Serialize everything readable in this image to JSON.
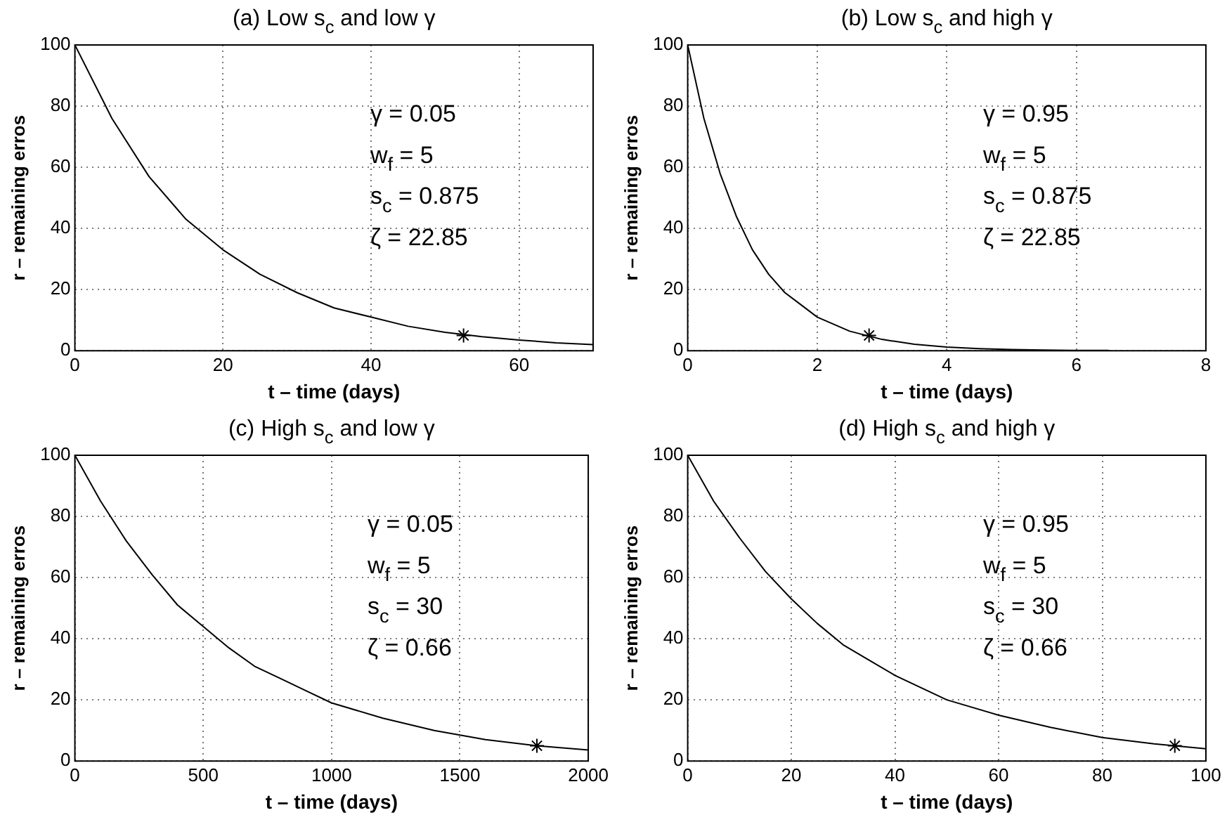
{
  "chart_data": [
    {
      "type": "line",
      "title": "(a) Low s$_{c}$ and low γ",
      "xlabel": "t – time (days)",
      "ylabel": "r – remaining erros",
      "xlim": [
        0,
        70
      ],
      "xticks": [
        0,
        20,
        40,
        60
      ],
      "ylim": [
        0,
        100
      ],
      "yticks": [
        0,
        20,
        40,
        60,
        80,
        100
      ],
      "grid": true,
      "line_style": "solid",
      "series": [
        {
          "type": "line",
          "color": "#000000",
          "marker": "none",
          "x": [
            0,
            5,
            10,
            15,
            20,
            25,
            30,
            35,
            40,
            45,
            50,
            55,
            60,
            65,
            70
          ],
          "values": [
            100,
            76,
            57,
            43,
            33,
            25,
            19,
            14,
            11,
            8,
            6,
            4.6,
            3.5,
            2.6,
            2
          ]
        },
        {
          "type": "scatter",
          "color": "#000000",
          "marker": "cross",
          "x": [
            52.5
          ],
          "values": [
            5
          ]
        }
      ],
      "annotations": [
        "γ = 0.05",
        "w$_{f}$ = 5",
        "s$_{c}$ = 0.875",
        "ζ = 22.85"
      ]
    },
    {
      "type": "line",
      "title": "(b) Low s$_{c}$ and high γ",
      "xlabel": "t – time (days)",
      "ylabel": "r – remaining erros",
      "xlim": [
        0,
        8
      ],
      "xticks": [
        0,
        2,
        4,
        6,
        8
      ],
      "ylim": [
        0,
        100
      ],
      "yticks": [
        0,
        20,
        40,
        60,
        80,
        100
      ],
      "grid": true,
      "line_style": "solid",
      "series": [
        {
          "type": "line",
          "color": "#000000",
          "marker": "none",
          "x": [
            0,
            0.25,
            0.5,
            0.75,
            1,
            1.25,
            1.5,
            1.75,
            2,
            2.5,
            3,
            3.5,
            4,
            4.5,
            5,
            5.5,
            6,
            6.5
          ],
          "values": [
            100,
            76,
            58,
            44,
            33,
            25,
            19,
            15,
            11,
            6.4,
            3.7,
            2.1,
            1.2,
            0.7,
            0.4,
            0.2,
            0.1,
            0.1
          ]
        },
        {
          "type": "scatter",
          "color": "#000000",
          "marker": "cross",
          "x": [
            2.8
          ],
          "values": [
            5
          ]
        }
      ],
      "annotations": [
        "γ = 0.95",
        "w$_{f}$ = 5",
        "s$_{c}$ = 0.875",
        "ζ = 22.85"
      ]
    },
    {
      "type": "line",
      "title": "(c) High s$_{c}$ and low γ",
      "xlabel": "t – time (days)",
      "ylabel": "r – remaining erros",
      "xlim": [
        0,
        2000
      ],
      "xticks": [
        0,
        500,
        1000,
        1500,
        2000
      ],
      "ylim": [
        0,
        100
      ],
      "yticks": [
        0,
        20,
        40,
        60,
        80,
        100
      ],
      "grid": true,
      "line_style": "solid",
      "series": [
        {
          "type": "line",
          "color": "#000000",
          "marker": "none",
          "x": [
            0,
            100,
            200,
            300,
            400,
            500,
            600,
            700,
            800,
            900,
            1000,
            1200,
            1400,
            1600,
            1800,
            2000
          ],
          "values": [
            100,
            85,
            72,
            61,
            51,
            44,
            37,
            31,
            27,
            23,
            19,
            14,
            10,
            7,
            5,
            3.6
          ]
        },
        {
          "type": "scatter",
          "color": "#000000",
          "marker": "cross",
          "x": [
            1800
          ],
          "values": [
            5
          ]
        }
      ],
      "annotations": [
        "γ = 0.05",
        "w$_{f}$ = 5",
        "s$_{c}$ = 30",
        "ζ = 0.66"
      ]
    },
    {
      "type": "line",
      "title": "(d) High s$_{c}$ and high γ",
      "xlabel": "t – time (days)",
      "ylabel": "r – remaining erros",
      "xlim": [
        0,
        100
      ],
      "xticks": [
        0,
        20,
        40,
        60,
        80,
        100
      ],
      "ylim": [
        0,
        100
      ],
      "yticks": [
        0,
        20,
        40,
        60,
        80,
        100
      ],
      "grid": true,
      "line_style": "solid",
      "series": [
        {
          "type": "line",
          "color": "#000000",
          "marker": "none",
          "x": [
            0,
            5,
            10,
            15,
            20,
            25,
            30,
            35,
            40,
            50,
            60,
            70,
            80,
            90,
            100
          ],
          "values": [
            100,
            85,
            73,
            62,
            53,
            45,
            38,
            33,
            28,
            20,
            15,
            11,
            7.7,
            5.6,
            4
          ]
        },
        {
          "type": "scatter",
          "color": "#000000",
          "marker": "cross",
          "x": [
            94
          ],
          "values": [
            5
          ]
        }
      ],
      "annotations": [
        "γ = 0.95",
        "w$_{f}$ = 5",
        "s$_{c}$ = 30",
        "ζ = 0.66"
      ]
    }
  ]
}
